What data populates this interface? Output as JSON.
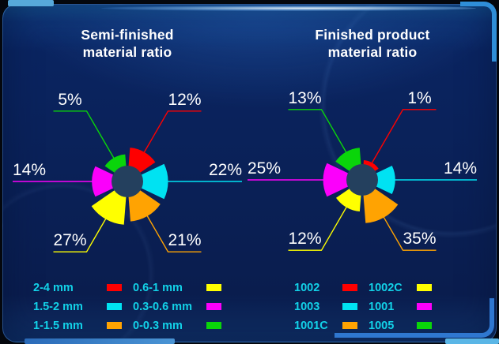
{
  "theme": {
    "panel_background": "#0a2158",
    "accent_light_blue": "#57a9da",
    "accent_blue": "#2f8ed8",
    "legend_text": "#12d2e8",
    "value_label_text": "#ffffff",
    "pie_center": "#24405e"
  },
  "panels": [
    {
      "title_line1": "Semi-finished",
      "title_line2": "material ratio",
      "legend_columns": [
        [
          {
            "label": "2-4 mm",
            "color": "#fe0000"
          },
          {
            "label": "1.5-2 mm",
            "color": "#00e2f2"
          },
          {
            "label": "1-1.5 mm",
            "color": "#ffa302"
          }
        ],
        [
          {
            "label": "0.6-1 mm",
            "color": "#ffff00"
          },
          {
            "label": "0.3-0.6 mm",
            "color": "#fb00fb"
          },
          {
            "label": "0-0.3 mm",
            "color": "#0ad50a"
          }
        ]
      ]
    },
    {
      "title_line1": "Finished product",
      "title_line2": "material ratio",
      "legend_columns": [
        [
          {
            "label": "1002",
            "color": "#fe0000"
          },
          {
            "label": "1003",
            "color": "#00e2f2"
          },
          {
            "label": "1001C",
            "color": "#ffa302"
          }
        ],
        [
          {
            "label": "1002C",
            "color": "#ffff00"
          },
          {
            "label": "1001",
            "color": "#fb00fb"
          },
          {
            "label": "1005",
            "color": "#0ad50a"
          }
        ]
      ]
    }
  ],
  "chart_data": [
    {
      "type": "pie",
      "variant": "nightingale-rose",
      "title": "Semi-finished material ratio",
      "unit": "%",
      "legend_position": "bottom",
      "slices": [
        {
          "label": "2-4 mm",
          "value": 12,
          "display": "12%",
          "color": "#fe0000"
        },
        {
          "label": "1.5-2 mm",
          "value": 22,
          "display": "22%",
          "color": "#00e2f2"
        },
        {
          "label": "1-1.5 mm",
          "value": 21,
          "display": "21%",
          "color": "#ffa302"
        },
        {
          "label": "0.6-1 mm",
          "value": 27,
          "display": "27%",
          "color": "#ffff00"
        },
        {
          "label": "0.3-0.6 mm",
          "value": 14,
          "display": "14%",
          "color": "#fb00fb"
        },
        {
          "label": "0-0.3 mm",
          "value": 5,
          "display": "5%",
          "color": "#0ad50a"
        }
      ]
    },
    {
      "type": "pie",
      "variant": "nightingale-rose",
      "title": "Finished product material ratio",
      "unit": "%",
      "legend_position": "bottom",
      "slices": [
        {
          "label": "1002",
          "value": 1,
          "display": "1%",
          "color": "#fe0000"
        },
        {
          "label": "1003",
          "value": 14,
          "display": "14%",
          "color": "#00e2f2"
        },
        {
          "label": "1001C",
          "value": 35,
          "display": "35%",
          "color": "#ffa302"
        },
        {
          "label": "1002C",
          "value": 12,
          "display": "12%",
          "color": "#ffff00"
        },
        {
          "label": "1001",
          "value": 25,
          "display": "25%",
          "color": "#fb00fb"
        },
        {
          "label": "1005",
          "value": 13,
          "display": "13%",
          "color": "#0ad50a"
        }
      ]
    }
  ]
}
